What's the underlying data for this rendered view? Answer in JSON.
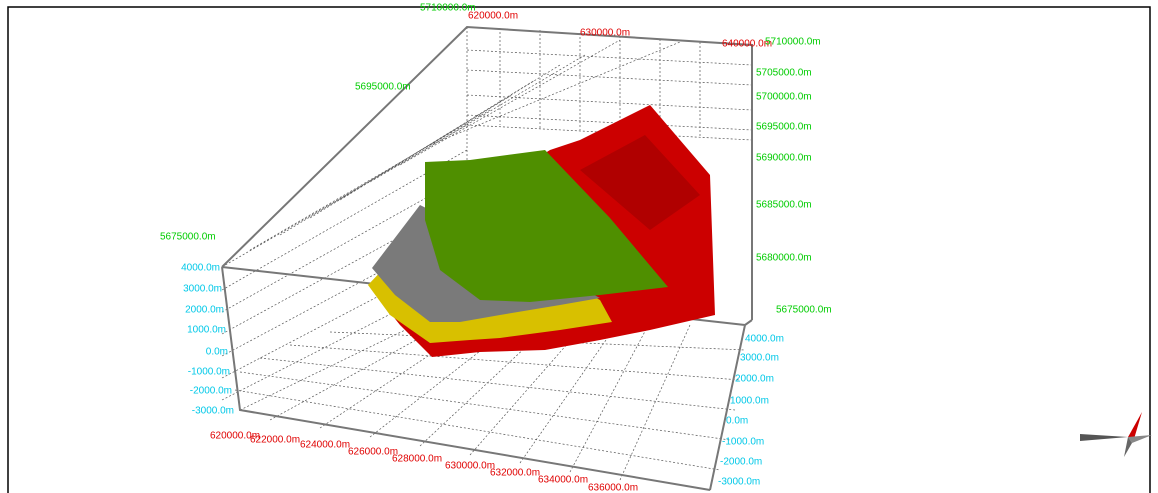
{
  "top": {
    "y_top": "5710000.0m",
    "x_ticks": [
      "620000.0m",
      "630000.0m",
      "640000.0m"
    ]
  },
  "right": {
    "y_ticks": [
      "5710000.0m",
      "5705000.0m",
      "5700000.0m",
      "5695000.0m",
      "5690000.0m",
      "5685000.0m",
      "5680000.0m",
      "5675000.0m"
    ],
    "z_ticks": [
      "4000.0m",
      "3000.0m",
      "2000.0m",
      "1000.0m",
      "0.0m",
      "-1000.0m",
      "-2000.0m",
      "-3000.0m"
    ]
  },
  "left": {
    "y_ticks": [
      "5695000.0m",
      "5675000.0m"
    ],
    "z_ticks": [
      "4000.0m",
      "3000.0m",
      "2000.0m",
      "1000.0m",
      "0.0m",
      "-1000.0m",
      "-2000.0m",
      "-3000.0m"
    ]
  },
  "bottom": {
    "x_ticks": [
      "620000.0m",
      "622000.0m",
      "624000.0m",
      "626000.0m",
      "628000.0m",
      "630000.0m",
      "632000.0m",
      "634000.0m",
      "636000.0m"
    ]
  }
}
